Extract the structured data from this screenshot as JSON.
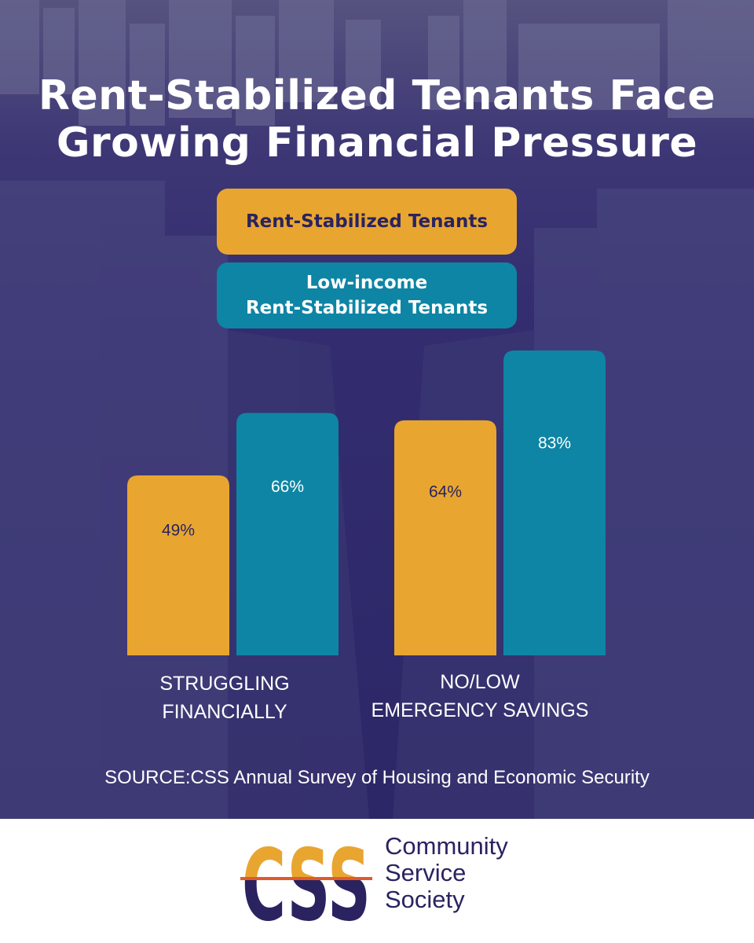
{
  "title": "Rent-Stabilized Tenants Face\nGrowing Financial Pressure",
  "legend": {
    "series_a": "Rent-Stabilized Tenants",
    "series_b": "Low-income\nRent-Stabilized Tenants"
  },
  "colors": {
    "orange": "#e8a630",
    "teal": "#0e85a4",
    "navy": "#2a2360",
    "background": "#2f2a6b"
  },
  "chart_data": {
    "type": "bar",
    "title": "Rent-Stabilized Tenants Face Growing Financial Pressure",
    "categories": [
      "STRUGGLING\nFINANCIALLY",
      "NO/LOW\nEMERGENCY SAVINGS"
    ],
    "series": [
      {
        "name": "Rent-Stabilized Tenants",
        "values": [
          49,
          64
        ],
        "labels": [
          "49%",
          "64%"
        ]
      },
      {
        "name": "Low-income Rent-Stabilized Tenants",
        "values": [
          66,
          83
        ],
        "labels": [
          "66%",
          "83%"
        ]
      }
    ],
    "ylim": [
      0,
      100
    ],
    "xlabel": "",
    "ylabel": "",
    "grid": false
  },
  "source": "SOURCE:CSS Annual Survey of Housing and Economic Security",
  "footer": {
    "logo_letters": "CSS",
    "org_line1": "Community",
    "org_line2": "Service",
    "org_line3": "Society"
  }
}
